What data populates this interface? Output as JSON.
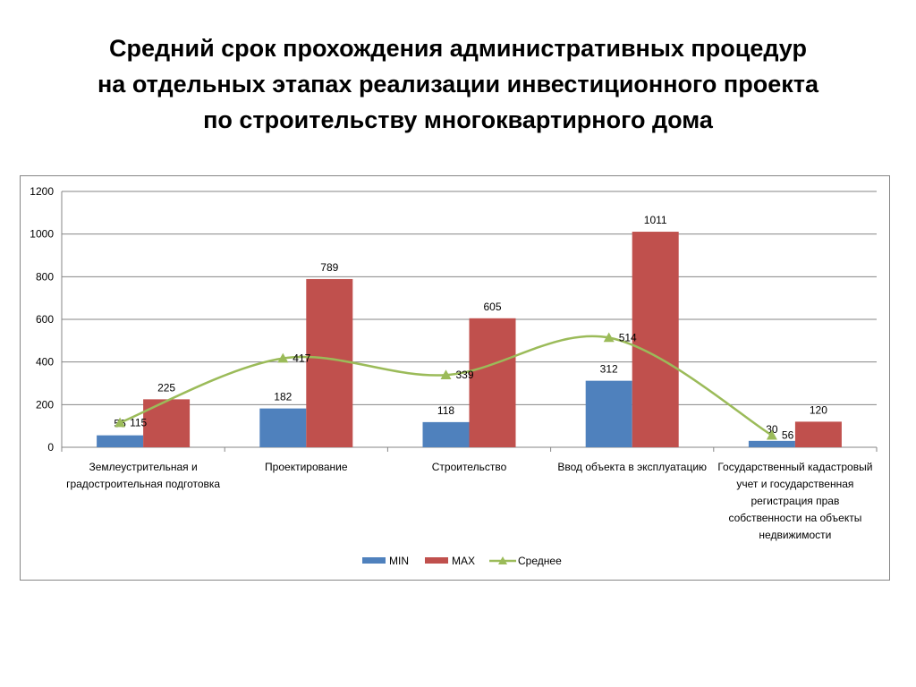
{
  "title": {
    "lines": [
      "Средний срок прохождения административных процедур",
      "на отдельных этапах реализации инвестиционного проекта",
      "по строительству многоквартирного дома"
    ]
  },
  "chart_data": {
    "type": "bar",
    "categories": [
      [
        "Землеустрительная и",
        "градостроительная подготовка"
      ],
      [
        "Проектирование"
      ],
      [
        "Строительство"
      ],
      [
        "Ввод объекта в эксплуатацию"
      ],
      [
        "Государственный кадастровый",
        "учет и государственная",
        "регистрация прав",
        "собственности на объекты",
        "недвижимости"
      ]
    ],
    "ylim": [
      0,
      1200
    ],
    "yticks": [
      0,
      200,
      400,
      600,
      800,
      1000,
      1200
    ],
    "grid": true,
    "legend_position": "bottom",
    "series": [
      {
        "name": "MIN",
        "kind": "bar",
        "color": "#4f81bd",
        "values": [
          56,
          182,
          118,
          312,
          30
        ]
      },
      {
        "name": "MAX",
        "kind": "bar",
        "color": "#c0504d",
        "values": [
          225,
          789,
          605,
          1011,
          120
        ]
      },
      {
        "name": "Среднее",
        "kind": "line",
        "marker": "triangle",
        "smooth": true,
        "color": "#9bbb59",
        "values": [
          115,
          417,
          339,
          514,
          56
        ]
      }
    ]
  }
}
